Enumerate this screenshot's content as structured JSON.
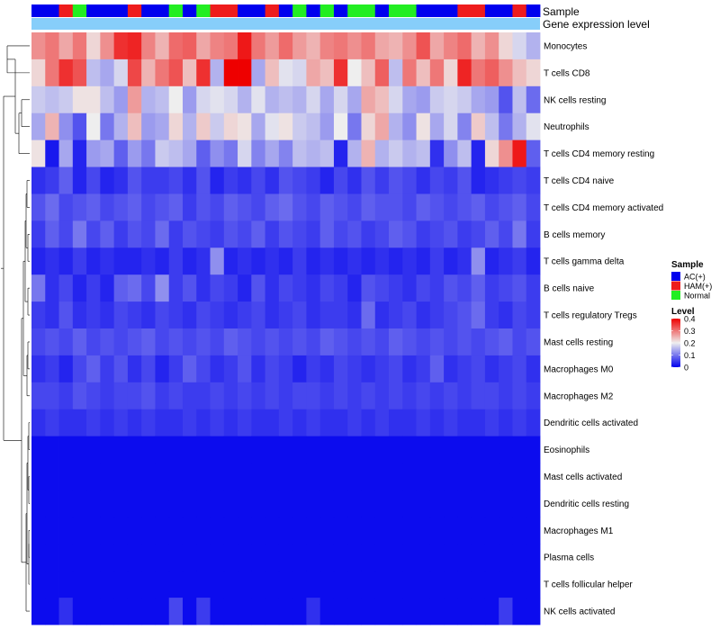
{
  "chart_data": {
    "type": "heatmap",
    "title": "",
    "annotation_tracks": [
      {
        "name": "Sample",
        "categorical": true
      },
      {
        "name": "Gene expression level",
        "categorical": false
      }
    ],
    "legend": {
      "placement": "right",
      "sample_title": "Sample",
      "sample_entries": [
        {
          "label": "AC(+)",
          "color": "#0000ee"
        },
        {
          "label": "HAM(+)",
          "color": "#ee1c1c"
        },
        {
          "label": "Normal",
          "color": "#22ee22"
        }
      ],
      "level_title": "Level",
      "level_ticks": [
        "0.4",
        "0.3",
        "0.2",
        "0.1",
        "0"
      ]
    },
    "color_scale": {
      "min": 0,
      "mid": 0.2,
      "max": 0.4,
      "low": "#0000ee",
      "mid_color": "#eeeeee",
      "high": "#ee0000"
    },
    "sample_groups": [
      "AC(+)",
      "AC(+)",
      "HAM(+)",
      "Normal",
      "AC(+)",
      "AC(+)",
      "AC(+)",
      "HAM(+)",
      "AC(+)",
      "AC(+)",
      "Normal",
      "AC(+)",
      "Normal",
      "HAM(+)",
      "HAM(+)",
      "AC(+)",
      "AC(+)",
      "HAM(+)",
      "AC(+)",
      "Normal",
      "AC(+)",
      "Normal",
      "AC(+)",
      "Normal",
      "Normal",
      "AC(+)",
      "Normal",
      "Normal",
      "AC(+)",
      "AC(+)",
      "AC(+)",
      "HAM(+)",
      "HAM(+)",
      "AC(+)",
      "AC(+)",
      "HAM(+)",
      "AC(+)"
    ],
    "expression_level": [
      0.8,
      0.8,
      0.8,
      0.8,
      0.8,
      0.8,
      0.8,
      0.8,
      0.8,
      0.8,
      0.8,
      0.8,
      0.8,
      0.8,
      0.8,
      0.8,
      0.8,
      0.8,
      0.8,
      0.8,
      0.8,
      0.8,
      0.8,
      0.8,
      0.8,
      0.8,
      0.8,
      0.8,
      0.8,
      0.8,
      0.8,
      0.8,
      0.8,
      0.8,
      0.8,
      0.8,
      0.8
    ],
    "rows": [
      {
        "label": "Monocytes",
        "values": [
          0.28,
          0.3,
          0.26,
          0.3,
          0.22,
          0.28,
          0.36,
          0.37,
          0.29,
          0.25,
          0.31,
          0.32,
          0.26,
          0.29,
          0.3,
          0.38,
          0.3,
          0.27,
          0.31,
          0.27,
          0.25,
          0.29,
          0.3,
          0.28,
          0.3,
          0.26,
          0.25,
          0.28,
          0.33,
          0.26,
          0.29,
          0.31,
          0.25,
          0.28,
          0.22,
          0.18,
          0.15
        ]
      },
      {
        "label": "T cells CD8",
        "values": [
          0.22,
          0.3,
          0.36,
          0.33,
          0.16,
          0.14,
          0.18,
          0.34,
          0.25,
          0.3,
          0.33,
          0.24,
          0.36,
          0.15,
          0.4,
          0.4,
          0.14,
          0.24,
          0.19,
          0.18,
          0.26,
          0.24,
          0.36,
          0.2,
          0.24,
          0.32,
          0.16,
          0.3,
          0.24,
          0.3,
          0.22,
          0.37,
          0.3,
          0.32,
          0.28,
          0.24,
          0.22
        ]
      },
      {
        "label": "NK cells resting",
        "values": [
          0.17,
          0.16,
          0.17,
          0.21,
          0.21,
          0.16,
          0.13,
          0.27,
          0.15,
          0.16,
          0.2,
          0.13,
          0.18,
          0.19,
          0.18,
          0.15,
          0.19,
          0.15,
          0.16,
          0.15,
          0.18,
          0.14,
          0.18,
          0.14,
          0.26,
          0.24,
          0.18,
          0.14,
          0.13,
          0.17,
          0.18,
          0.17,
          0.14,
          0.13,
          0.07,
          0.16,
          0.09
        ]
      },
      {
        "label": "Neutrophils",
        "values": [
          0.14,
          0.25,
          0.12,
          0.07,
          0.2,
          0.1,
          0.15,
          0.24,
          0.13,
          0.14,
          0.22,
          0.15,
          0.23,
          0.17,
          0.22,
          0.21,
          0.14,
          0.19,
          0.21,
          0.17,
          0.16,
          0.13,
          0.2,
          0.1,
          0.22,
          0.26,
          0.15,
          0.12,
          0.21,
          0.14,
          0.18,
          0.11,
          0.23,
          0.16,
          0.1,
          0.15,
          0.19
        ]
      },
      {
        "label": "T cells CD4 memory resting",
        "values": [
          0.21,
          0.02,
          0.14,
          0.03,
          0.13,
          0.14,
          0.08,
          0.13,
          0.1,
          0.17,
          0.16,
          0.14,
          0.08,
          0.12,
          0.1,
          0.18,
          0.11,
          0.14,
          0.11,
          0.16,
          0.15,
          0.16,
          0.03,
          0.15,
          0.25,
          0.15,
          0.17,
          0.15,
          0.16,
          0.04,
          0.12,
          0.16,
          0.03,
          0.22,
          0.28,
          0.38,
          0.08
        ]
      },
      {
        "label": "T cells CD4 naive",
        "values": [
          0.04,
          0.05,
          0.08,
          0.03,
          0.06,
          0.03,
          0.04,
          0.07,
          0.05,
          0.05,
          0.06,
          0.04,
          0.07,
          0.03,
          0.05,
          0.04,
          0.06,
          0.04,
          0.07,
          0.06,
          0.05,
          0.03,
          0.06,
          0.04,
          0.07,
          0.05,
          0.07,
          0.06,
          0.04,
          0.06,
          0.05,
          0.07,
          0.03,
          0.04,
          0.05,
          0.06,
          0.05
        ]
      },
      {
        "label": "T cells CD4 memory activated",
        "values": [
          0.07,
          0.09,
          0.06,
          0.07,
          0.08,
          0.06,
          0.07,
          0.08,
          0.06,
          0.07,
          0.08,
          0.05,
          0.07,
          0.06,
          0.08,
          0.07,
          0.06,
          0.08,
          0.09,
          0.07,
          0.06,
          0.08,
          0.07,
          0.06,
          0.08,
          0.07,
          0.07,
          0.06,
          0.08,
          0.07,
          0.06,
          0.07,
          0.08,
          0.06,
          0.07,
          0.08,
          0.06
        ]
      },
      {
        "label": "B cells memory",
        "values": [
          0.05,
          0.08,
          0.06,
          0.1,
          0.06,
          0.08,
          0.05,
          0.07,
          0.06,
          0.09,
          0.05,
          0.07,
          0.06,
          0.05,
          0.07,
          0.06,
          0.08,
          0.05,
          0.07,
          0.06,
          0.05,
          0.08,
          0.06,
          0.07,
          0.05,
          0.06,
          0.08,
          0.07,
          0.05,
          0.06,
          0.07,
          0.05,
          0.06,
          0.08,
          0.06,
          0.1,
          0.05
        ]
      },
      {
        "label": "T cells gamma delta",
        "values": [
          0.03,
          0.04,
          0.03,
          0.05,
          0.03,
          0.04,
          0.03,
          0.03,
          0.04,
          0.03,
          0.05,
          0.03,
          0.04,
          0.12,
          0.03,
          0.04,
          0.03,
          0.04,
          0.03,
          0.05,
          0.03,
          0.04,
          0.03,
          0.04,
          0.03,
          0.04,
          0.03,
          0.04,
          0.03,
          0.05,
          0.03,
          0.04,
          0.12,
          0.03,
          0.04,
          0.05,
          0.03
        ]
      },
      {
        "label": "B cells naive",
        "values": [
          0.1,
          0.04,
          0.06,
          0.03,
          0.05,
          0.03,
          0.08,
          0.09,
          0.06,
          0.12,
          0.05,
          0.07,
          0.04,
          0.06,
          0.05,
          0.03,
          0.07,
          0.04,
          0.06,
          0.05,
          0.04,
          0.06,
          0.05,
          0.03,
          0.07,
          0.06,
          0.05,
          0.04,
          0.06,
          0.05,
          0.07,
          0.06,
          0.08,
          0.05,
          0.06,
          0.07,
          0.05
        ]
      },
      {
        "label": "T cells regulatory  Tregs",
        "values": [
          0.05,
          0.04,
          0.07,
          0.04,
          0.05,
          0.04,
          0.06,
          0.05,
          0.04,
          0.06,
          0.05,
          0.04,
          0.06,
          0.05,
          0.04,
          0.05,
          0.06,
          0.04,
          0.05,
          0.06,
          0.04,
          0.05,
          0.05,
          0.04,
          0.09,
          0.04,
          0.05,
          0.06,
          0.04,
          0.05,
          0.06,
          0.07,
          0.09,
          0.05,
          0.04,
          0.06,
          0.05
        ]
      },
      {
        "label": "Mast cells resting",
        "values": [
          0.06,
          0.07,
          0.06,
          0.08,
          0.06,
          0.07,
          0.06,
          0.07,
          0.08,
          0.06,
          0.07,
          0.06,
          0.07,
          0.06,
          0.08,
          0.07,
          0.06,
          0.07,
          0.06,
          0.07,
          0.06,
          0.08,
          0.07,
          0.06,
          0.07,
          0.06,
          0.08,
          0.07,
          0.06,
          0.07,
          0.06,
          0.07,
          0.06,
          0.07,
          0.08,
          0.06,
          0.07
        ]
      },
      {
        "label": "Macrophages M0",
        "values": [
          0.04,
          0.05,
          0.03,
          0.06,
          0.08,
          0.05,
          0.07,
          0.04,
          0.06,
          0.03,
          0.05,
          0.08,
          0.06,
          0.04,
          0.05,
          0.07,
          0.04,
          0.06,
          0.05,
          0.03,
          0.05,
          0.04,
          0.06,
          0.05,
          0.04,
          0.05,
          0.06,
          0.04,
          0.05,
          0.08,
          0.04,
          0.05,
          0.06,
          0.04,
          0.05,
          0.06,
          0.04
        ]
      },
      {
        "label": "Macrophages M2",
        "values": [
          0.06,
          0.06,
          0.05,
          0.07,
          0.06,
          0.05,
          0.06,
          0.06,
          0.07,
          0.05,
          0.06,
          0.05,
          0.05,
          0.06,
          0.05,
          0.06,
          0.05,
          0.06,
          0.05,
          0.06,
          0.06,
          0.05,
          0.06,
          0.05,
          0.06,
          0.05,
          0.06,
          0.05,
          0.06,
          0.05,
          0.06,
          0.05,
          0.06,
          0.06,
          0.05,
          0.06,
          0.05
        ]
      },
      {
        "label": "Dendritic cells activated",
        "values": [
          0.04,
          0.05,
          0.04,
          0.04,
          0.05,
          0.04,
          0.05,
          0.04,
          0.05,
          0.04,
          0.04,
          0.05,
          0.04,
          0.05,
          0.04,
          0.05,
          0.04,
          0.04,
          0.05,
          0.04,
          0.05,
          0.04,
          0.04,
          0.05,
          0.04,
          0.05,
          0.04,
          0.04,
          0.05,
          0.04,
          0.05,
          0.04,
          0.04,
          0.05,
          0.04,
          0.05,
          0.04
        ]
      },
      {
        "label": "Eosinophils",
        "values": [
          0.01,
          0.01,
          0.01,
          0.01,
          0.01,
          0.01,
          0.01,
          0.01,
          0.01,
          0.01,
          0.01,
          0.01,
          0.01,
          0.01,
          0.01,
          0.01,
          0.01,
          0.01,
          0.01,
          0.01,
          0.01,
          0.01,
          0.01,
          0.01,
          0.01,
          0.01,
          0.01,
          0.01,
          0.01,
          0.01,
          0.01,
          0.01,
          0.01,
          0.01,
          0.01,
          0.01,
          0.01
        ]
      },
      {
        "label": "Mast cells activated",
        "values": [
          0.01,
          0.01,
          0.01,
          0.01,
          0.01,
          0.01,
          0.01,
          0.01,
          0.01,
          0.01,
          0.01,
          0.01,
          0.01,
          0.01,
          0.01,
          0.01,
          0.01,
          0.01,
          0.01,
          0.01,
          0.01,
          0.01,
          0.01,
          0.01,
          0.01,
          0.01,
          0.01,
          0.01,
          0.01,
          0.01,
          0.01,
          0.01,
          0.01,
          0.01,
          0.01,
          0.01,
          0.01
        ]
      },
      {
        "label": "Dendritic cells resting",
        "values": [
          0.01,
          0.01,
          0.01,
          0.01,
          0.01,
          0.01,
          0.01,
          0.01,
          0.01,
          0.01,
          0.01,
          0.01,
          0.01,
          0.01,
          0.01,
          0.01,
          0.01,
          0.01,
          0.01,
          0.01,
          0.01,
          0.01,
          0.01,
          0.01,
          0.01,
          0.01,
          0.01,
          0.01,
          0.01,
          0.01,
          0.01,
          0.01,
          0.01,
          0.01,
          0.01,
          0.01,
          0.01
        ]
      },
      {
        "label": "Macrophages M1",
        "values": [
          0.01,
          0.01,
          0.01,
          0.01,
          0.01,
          0.01,
          0.01,
          0.01,
          0.01,
          0.01,
          0.01,
          0.01,
          0.01,
          0.01,
          0.01,
          0.01,
          0.01,
          0.01,
          0.01,
          0.01,
          0.01,
          0.01,
          0.01,
          0.01,
          0.01,
          0.01,
          0.01,
          0.01,
          0.01,
          0.01,
          0.01,
          0.01,
          0.01,
          0.01,
          0.01,
          0.01,
          0.01
        ]
      },
      {
        "label": "Plasma cells",
        "values": [
          0.01,
          0.01,
          0.01,
          0.01,
          0.01,
          0.01,
          0.01,
          0.01,
          0.01,
          0.01,
          0.01,
          0.01,
          0.01,
          0.01,
          0.01,
          0.01,
          0.01,
          0.01,
          0.01,
          0.01,
          0.01,
          0.01,
          0.01,
          0.01,
          0.01,
          0.01,
          0.01,
          0.01,
          0.01,
          0.01,
          0.01,
          0.01,
          0.01,
          0.01,
          0.01,
          0.01,
          0.01
        ]
      },
      {
        "label": "T cells follicular helper",
        "values": [
          0.01,
          0.01,
          0.01,
          0.01,
          0.01,
          0.01,
          0.01,
          0.01,
          0.01,
          0.01,
          0.01,
          0.01,
          0.01,
          0.01,
          0.01,
          0.01,
          0.01,
          0.01,
          0.01,
          0.01,
          0.01,
          0.01,
          0.01,
          0.01,
          0.01,
          0.01,
          0.01,
          0.01,
          0.01,
          0.01,
          0.01,
          0.01,
          0.01,
          0.01,
          0.01,
          0.01,
          0.01
        ]
      },
      {
        "label": "NK cells activated",
        "values": [
          0.01,
          0.01,
          0.04,
          0.01,
          0.01,
          0.01,
          0.01,
          0.01,
          0.01,
          0.01,
          0.06,
          0.01,
          0.05,
          0.01,
          0.01,
          0.01,
          0.01,
          0.01,
          0.01,
          0.01,
          0.04,
          0.01,
          0.01,
          0.01,
          0.01,
          0.01,
          0.01,
          0.01,
          0.01,
          0.01,
          0.01,
          0.01,
          0.01,
          0.01,
          0.05,
          0.01,
          0.01
        ]
      }
    ]
  }
}
